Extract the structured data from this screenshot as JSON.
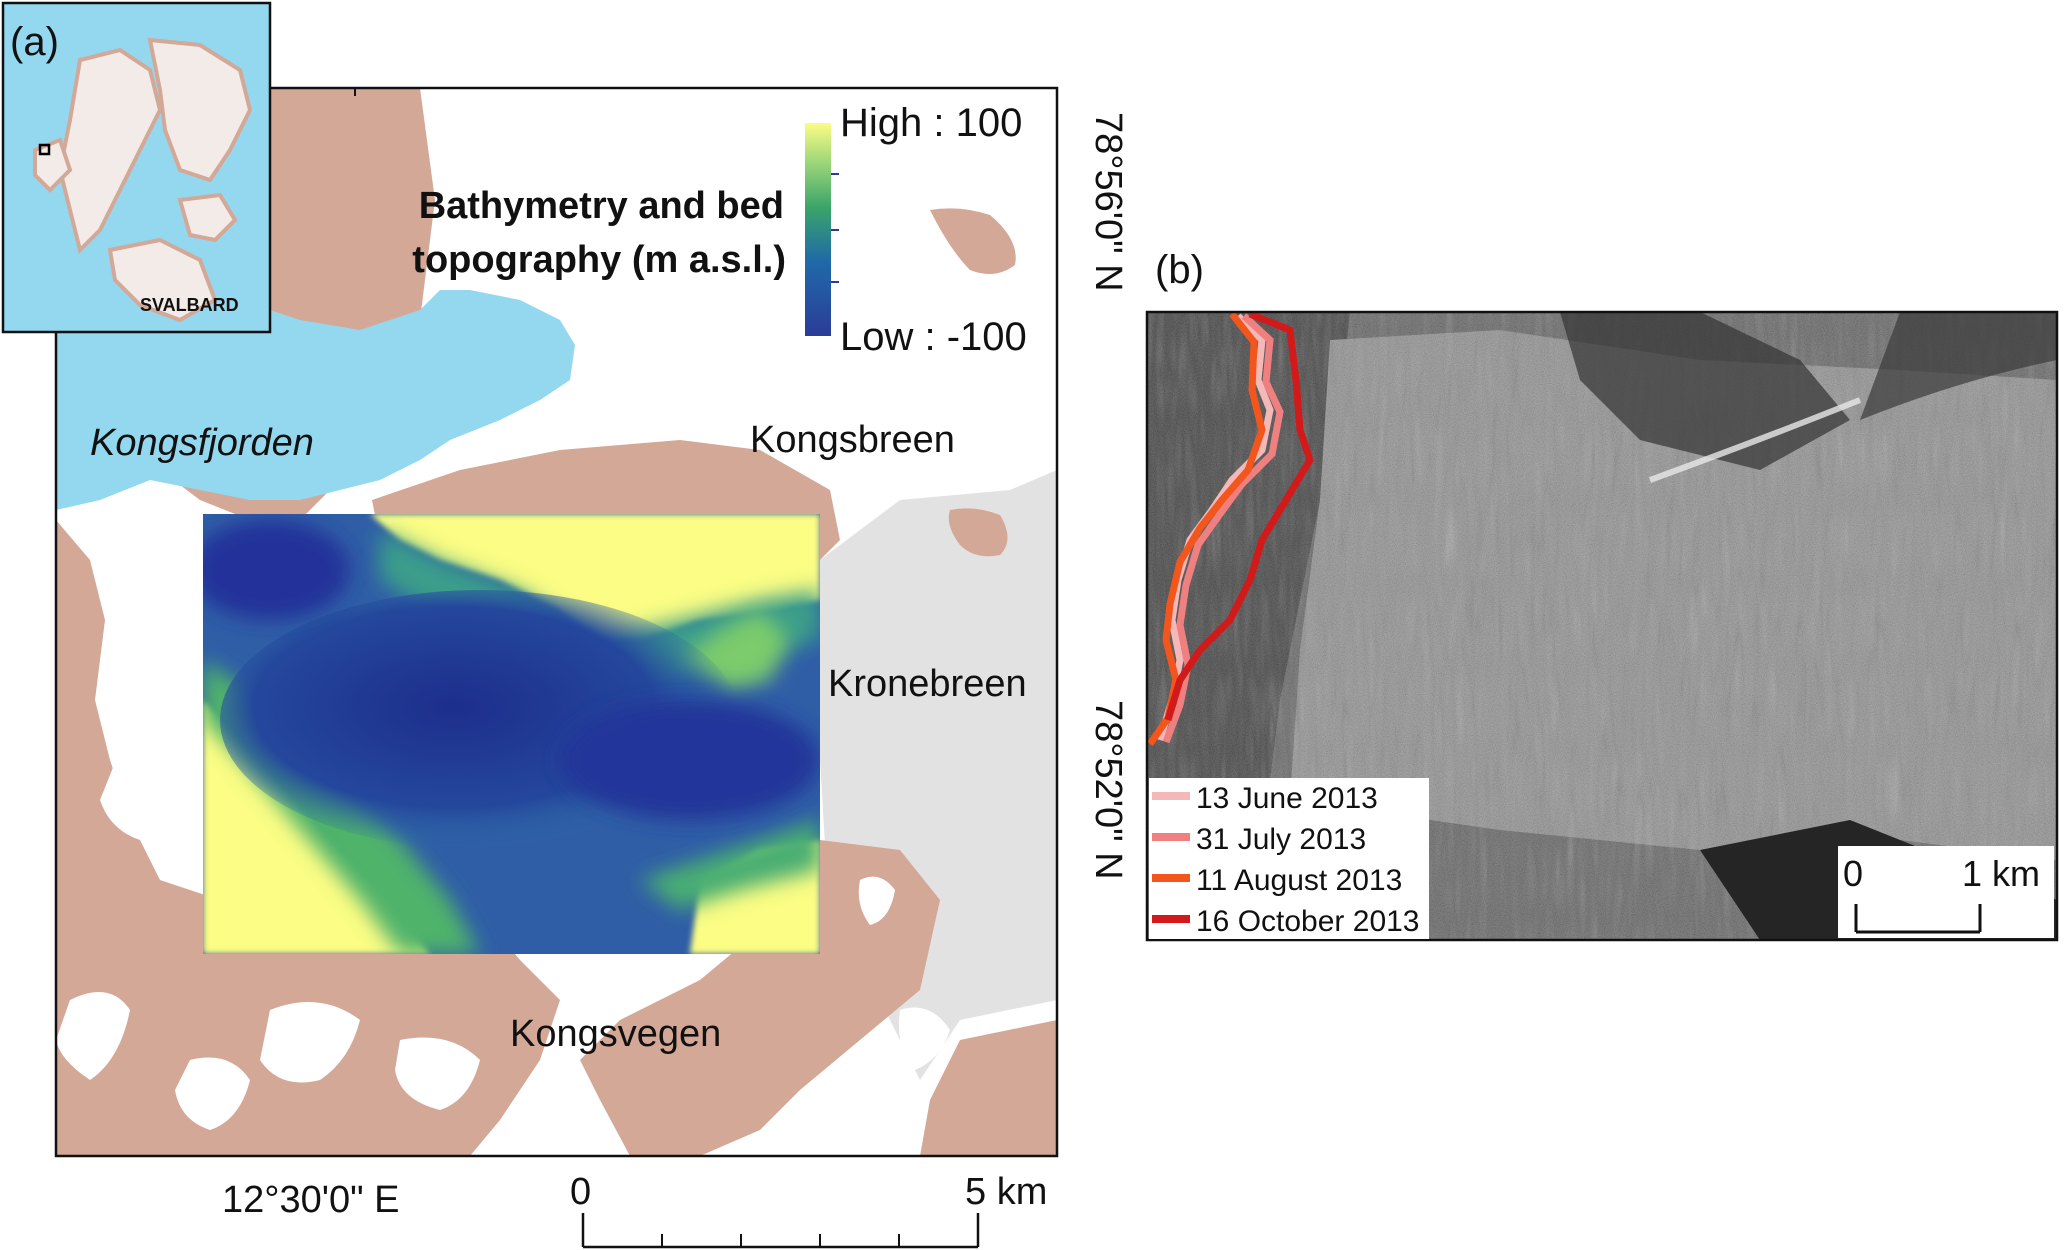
{
  "panels": {
    "a": {
      "label": "(a)",
      "inset_label": "SVALBARD",
      "legend": {
        "title_line1": "Bathymetry and bed",
        "title_line2": "topography (m a.s.l.)",
        "high": "High : 100",
        "low": "Low : -100"
      },
      "place_names": {
        "fjord": "Kongsfjorden",
        "kongsbreen": "Kongsbreen",
        "kronebreen": "Kronebreen",
        "kongsvegen": "Kongsvegen"
      },
      "coords": {
        "lat_top": "78°56'0\" N",
        "lat_bottom": "78°52'0\" N",
        "lon": "12°30'0\" E"
      },
      "scalebar": {
        "start": "0",
        "end": "5 km"
      },
      "colors": {
        "land": "#d4a897",
        "water": "#93d8ee",
        "ice": "#e2e2e2",
        "colormap_low": "#2b3c97",
        "colormap_mid": "#3aa36a",
        "colormap_high": "#fbfd84"
      }
    },
    "b": {
      "label": "(b)",
      "legend": [
        {
          "label": "13 June 2013",
          "color": "#f5b8b8"
        },
        {
          "label": "31 July 2013",
          "color": "#f08080"
        },
        {
          "label": "11 August 2013",
          "color": "#f2561d"
        },
        {
          "label": "16 October 2013",
          "color": "#d21a1a"
        }
      ],
      "scalebar": {
        "start": "0",
        "end": "1 km"
      }
    }
  }
}
